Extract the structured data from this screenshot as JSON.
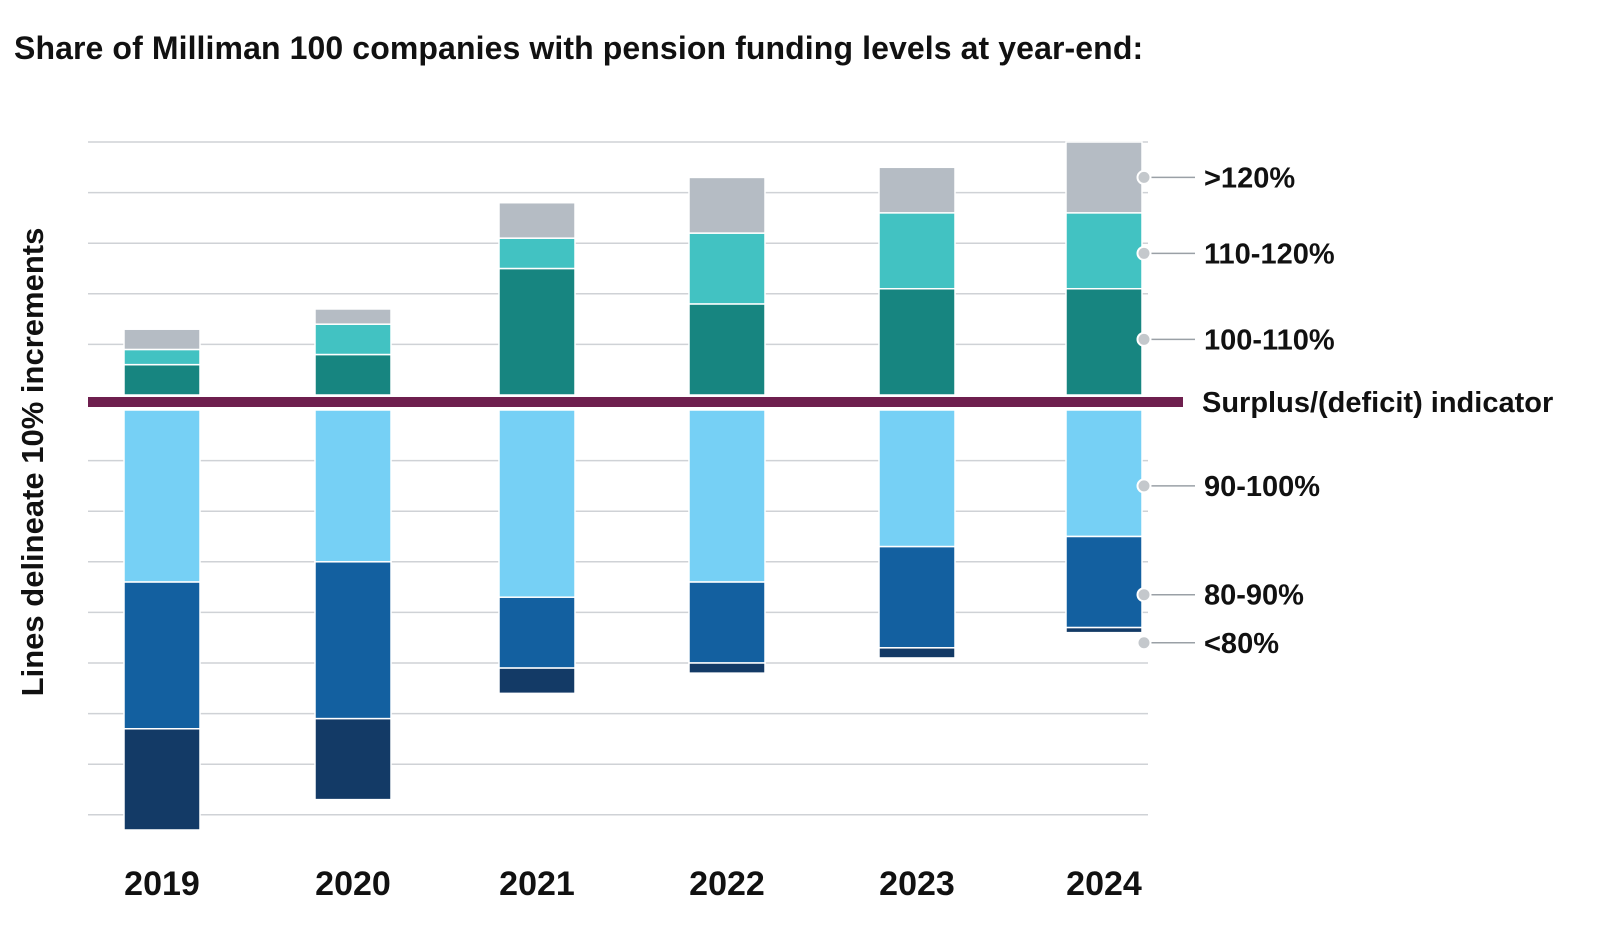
{
  "title": "Share of Milliman 100 companies with pension funding levels at year-end:",
  "chart_data": {
    "type": "bar",
    "subtype": "diverging-stacked",
    "ylabel": "Lines delineate 10% increments",
    "xlabel": "",
    "grid": true,
    "categories": [
      "2019",
      "2020",
      "2021",
      "2022",
      "2023",
      "2024"
    ],
    "indicator_label": "Surplus/(deficit) indicator",
    "indicator_color": "#6e1f4e",
    "grid_color": "#cfd2d6",
    "series": [
      {
        "name": ">120%",
        "side": "surplus",
        "color": "#b5bcc4",
        "values": [
          4,
          3,
          7,
          11,
          9,
          14
        ]
      },
      {
        "name": "110-120%",
        "side": "surplus",
        "color": "#42c2c2",
        "values": [
          3,
          6,
          6,
          14,
          15,
          15
        ]
      },
      {
        "name": "100-110%",
        "side": "surplus",
        "color": "#178580",
        "values": [
          6,
          8,
          25,
          18,
          21,
          21
        ]
      },
      {
        "name": "90-100%",
        "side": "deficit",
        "color": "#76d0f5",
        "values": [
          34,
          30,
          37,
          34,
          27,
          25
        ]
      },
      {
        "name": "80-90%",
        "side": "deficit",
        "color": "#1360a0",
        "values": [
          29,
          31,
          14,
          16,
          20,
          18
        ]
      },
      {
        "name": "<80%",
        "side": "deficit",
        "color": "#133a66",
        "values": [
          20,
          16,
          5,
          2,
          2,
          1
        ]
      }
    ],
    "legend_order": [
      ">120%",
      "110-120%",
      "100-110%",
      "Surplus/(deficit) indicator",
      "90-100%",
      "80-90%",
      "<80%"
    ],
    "legend_anchor_values": [
      {
        "name": ">120%",
        "side": "surplus",
        "value": 43
      },
      {
        "name": "110-120%",
        "side": "surplus",
        "value": 28
      },
      {
        "name": "100-110%",
        "side": "surplus",
        "value": 11
      },
      {
        "name": "90-100%",
        "side": "deficit",
        "value": 15
      },
      {
        "name": "80-90%",
        "side": "deficit",
        "value": 36.5
      },
      {
        "name": "<80%",
        "side": "deficit",
        "value": 46
      }
    ]
  }
}
